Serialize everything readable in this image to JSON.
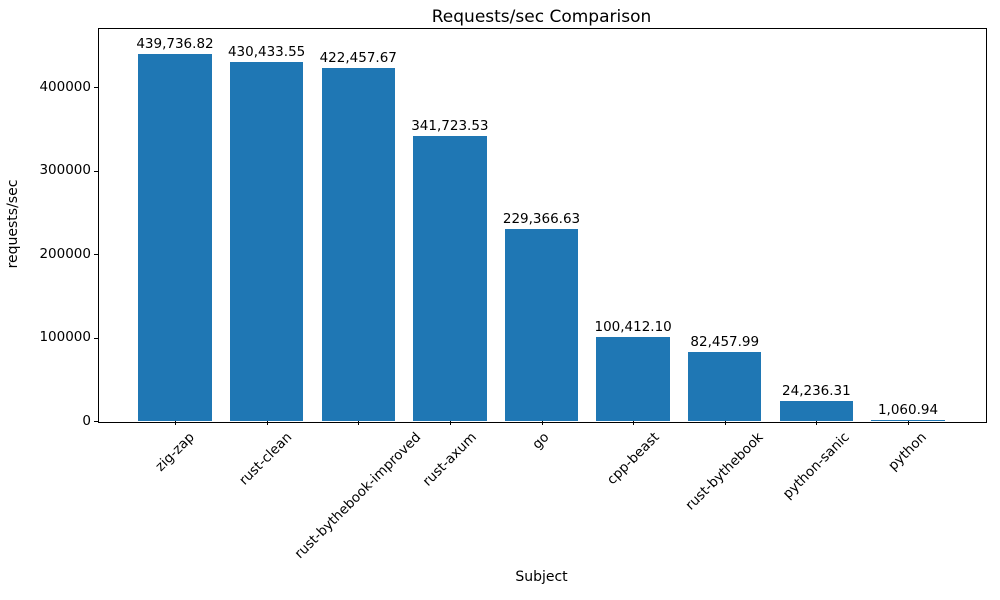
{
  "chart_data": {
    "type": "bar",
    "title": "Requests/sec Comparison",
    "xlabel": "Subject",
    "ylabel": "requests/sec",
    "categories": [
      "zig-zap",
      "rust-clean",
      "rust-bythebook-improved",
      "rust-axum",
      "go",
      "cpp-beast",
      "rust-bythebook",
      "python-sanic",
      "python"
    ],
    "values": [
      439736.82,
      430433.55,
      422457.67,
      341723.53,
      229366.63,
      100412.1,
      82457.99,
      24236.31,
      1060.94
    ],
    "value_labels": [
      "439,736.82",
      "430,433.55",
      "422,457.67",
      "341,723.53",
      "229,366.63",
      "100,412.10",
      "82,457.99",
      "24,236.31",
      "1,060.94"
    ],
    "bar_color": "#1f77b4",
    "yticks": [
      0,
      100000,
      200000,
      300000,
      400000
    ],
    "ytick_labels": [
      "0",
      "100000",
      "200000",
      "300000",
      "400000"
    ],
    "ylim": [
      0,
      470659
    ],
    "xlim": [
      -0.84,
      8.84
    ],
    "bar_width": 0.8,
    "x_tick_rotation_deg": 45,
    "grid": false,
    "legend": null
  }
}
